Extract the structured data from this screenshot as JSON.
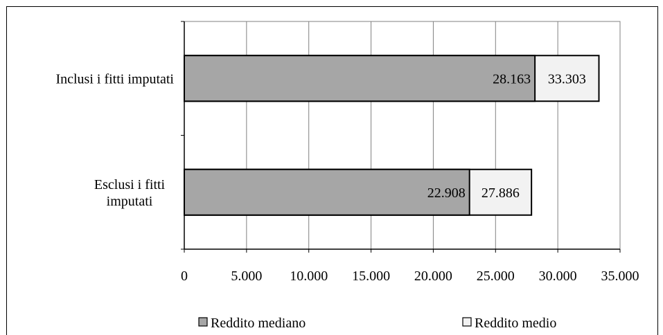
{
  "chart_data": {
    "type": "bar",
    "orientation": "horizontal",
    "layout": "stacked-overlay",
    "categories": [
      [
        "Inclusi i fitti imputati"
      ],
      [
        "Esclusi i fitti",
        "imputati"
      ]
    ],
    "series": [
      {
        "name": "Reddito mediano",
        "values": [
          28163,
          22908
        ],
        "labels": [
          "28.163",
          "22.908"
        ],
        "color": "#a6a6a6"
      },
      {
        "name": "Reddito medio",
        "values": [
          33303,
          27886
        ],
        "labels": [
          "33.303",
          "27.886"
        ],
        "color": "#f2f2f2"
      }
    ],
    "xlim": [
      0,
      35000
    ],
    "x_ticks": [
      0,
      5000,
      10000,
      15000,
      20000,
      25000,
      30000,
      35000
    ],
    "x_tick_labels": [
      "0",
      "5.000",
      "10.000",
      "15.000",
      "20.000",
      "25.000",
      "30.000",
      "35.000"
    ],
    "grid": "vertical",
    "legend": "bottom",
    "legend_entries": [
      "Reddito mediano",
      "Reddito medio"
    ]
  }
}
